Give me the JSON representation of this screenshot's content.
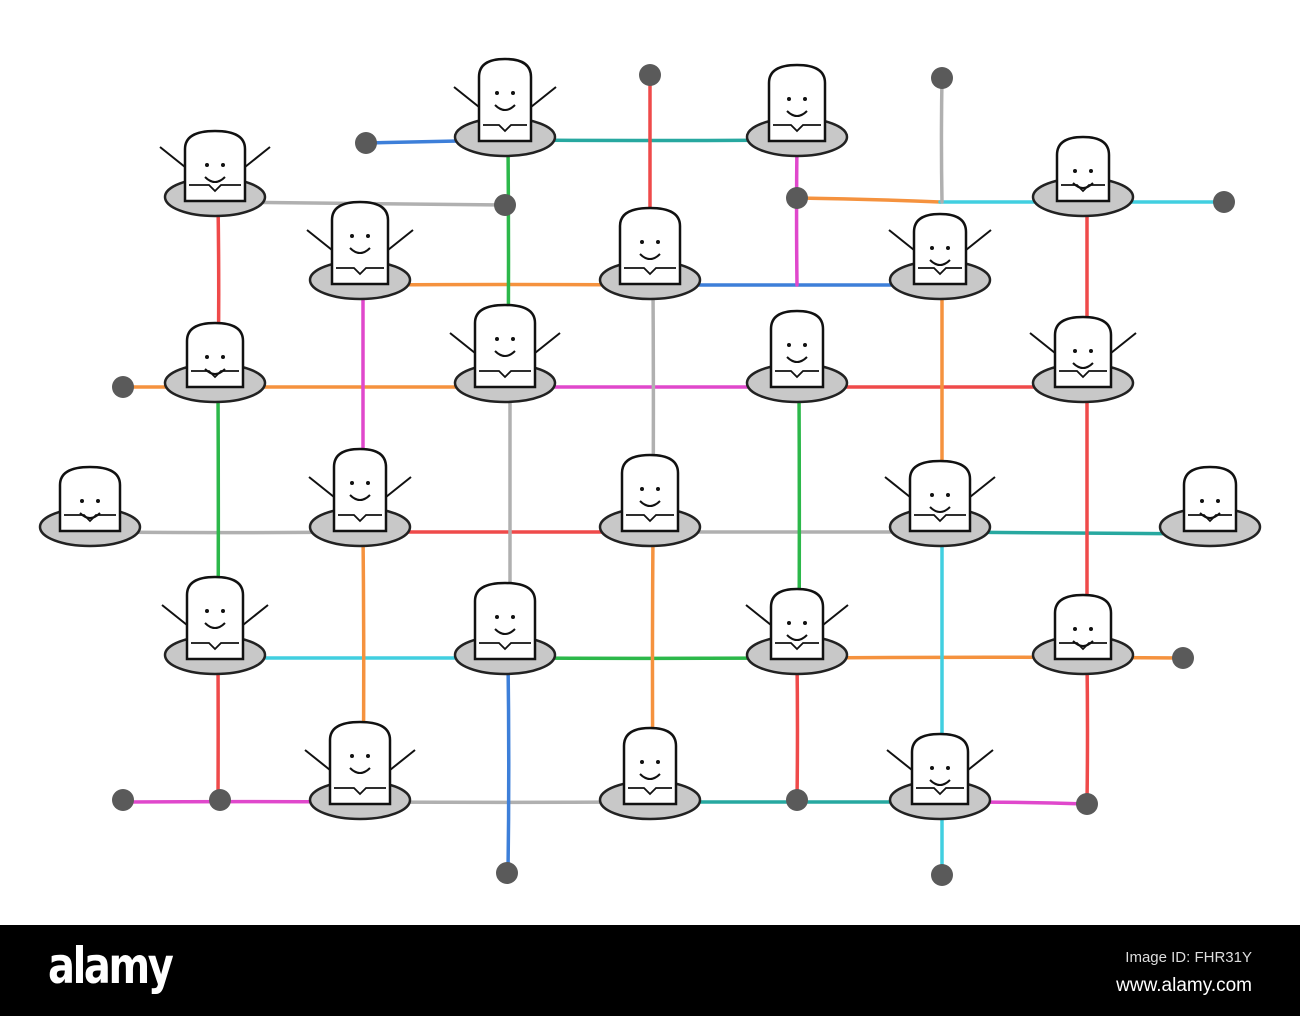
{
  "palette": {
    "red": "#ef4a4a",
    "orange": "#f5923e",
    "blue": "#3d7fd9",
    "teal": "#27a8a0",
    "cyan": "#41cfe0",
    "green": "#2cb84a",
    "magenta": "#e048cc",
    "gray": "#b0b0b0",
    "hole": "#c8c8c8",
    "dot": "#5a5a5a"
  },
  "footer": {
    "logo": "alamy",
    "image_id": "Image ID: FHR31Y",
    "url": "www.alamy.com"
  }
}
